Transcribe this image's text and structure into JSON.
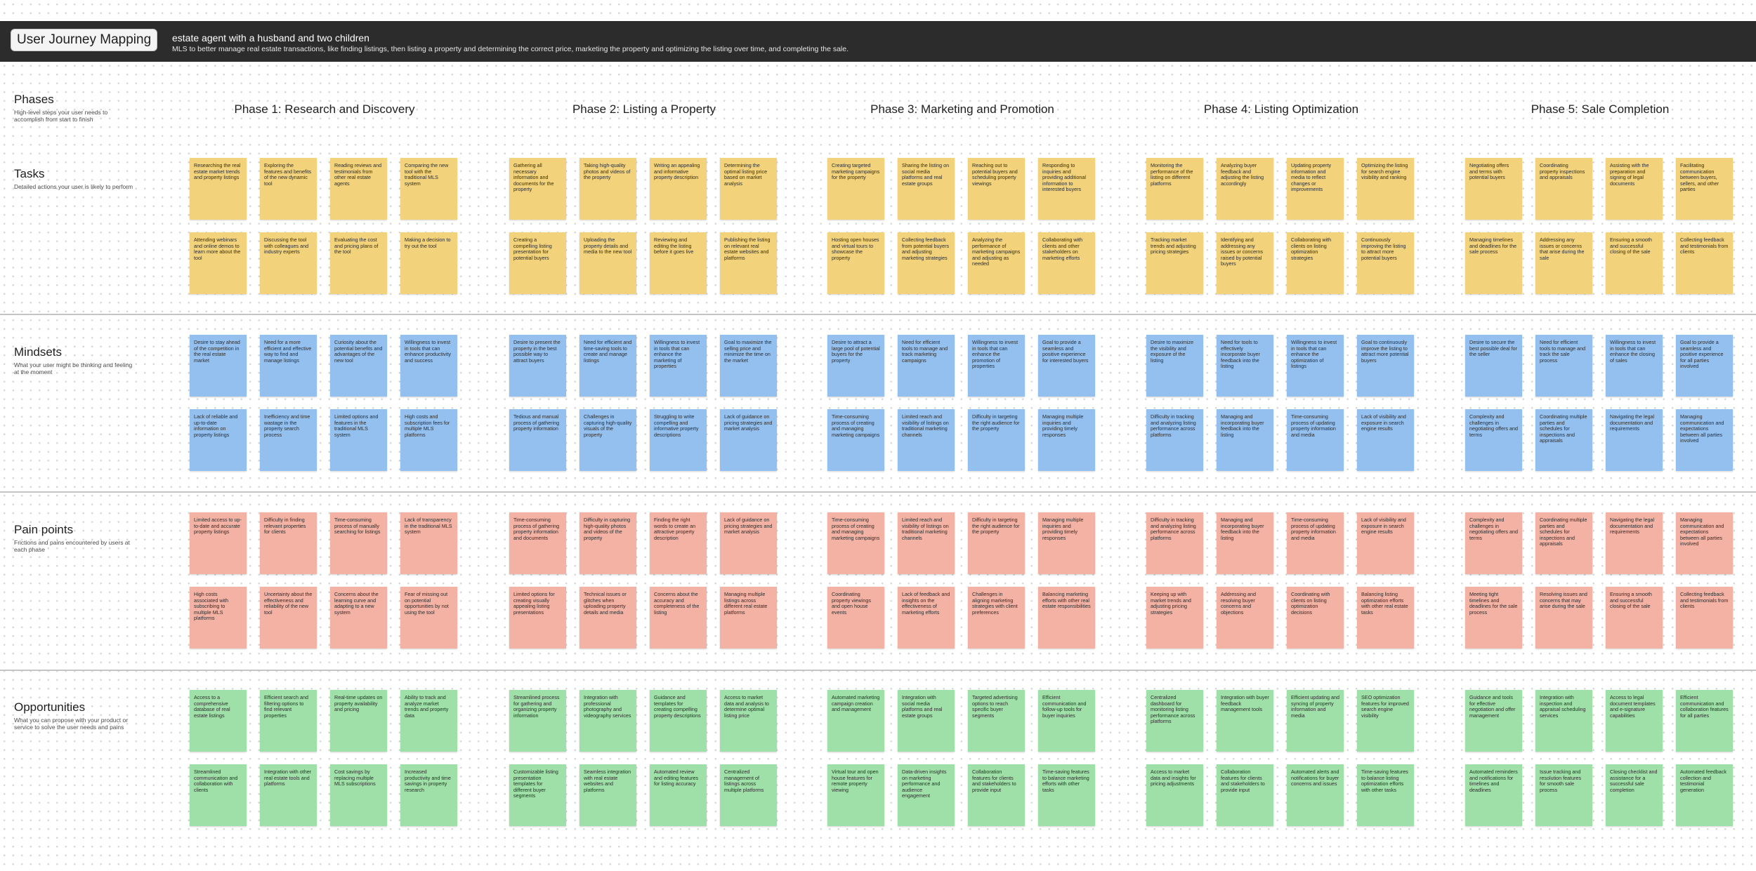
{
  "header": {
    "title_badge": "User Journey Mapping",
    "persona": "estate agent with a husband and two children",
    "description": "MLS to better manage real estate transactions, like finding listings, then listing a property and determining the correct price, marketing the property and optimizing the listing over time, and completing the sale."
  },
  "rows": {
    "phases": {
      "title": "Phases",
      "desc": "High-level steps your user needs to accomplish from start to finish"
    },
    "tasks": {
      "title": "Tasks",
      "desc": "Detailed actions your user is likely to perform"
    },
    "mindsets": {
      "title": "Mindsets",
      "desc": "What your user might be thinking and feeling at the moment"
    },
    "pains": {
      "title": "Pain points",
      "desc": "Frictions and pains encountered by users at each phase"
    },
    "opps": {
      "title": "Opportunities",
      "desc": "What you can propose with your product or service to solve the user needs and pains"
    }
  },
  "phases": [
    {
      "title": "Phase 1: Research and Discovery",
      "tasks": [
        "Researching the real estate market trends and property listings",
        "Exploring the features and benefits of the new dynamic tool",
        "Reading reviews and testimonials from other real estate agents",
        "Comparing the new tool with the traditional MLS system",
        "Attending webinars and online demos to learn more about the tool",
        "Discussing the tool with colleagues and industry experts",
        "Evaluating the cost and pricing plans of the tool",
        "Making a decision to try out the tool"
      ],
      "mindsets": [
        "Desire to stay ahead of the competition in the real estate market",
        "Need for a more efficient and effective way to find and manage listings",
        "Curiosity about the potential benefits and advantages of the new tool",
        "Willingness to invest in tools that can enhance productivity and success",
        "Lack of reliable and up-to-date information on property listings",
        "Inefficiency and time wastage in the property search process",
        "Limited options and features in the traditional MLS system",
        "High costs and subscription fees for multiple MLS platforms"
      ],
      "pains": [
        "Limited access to up-to-date and accurate property listings",
        "Difficulty in finding relevant properties for clients",
        "Time-consuming process of manually searching for listings",
        "Lack of transparency in the traditional MLS system",
        "High costs associated with subscribing to multiple MLS platforms",
        "Uncertainty about the effectiveness and reliability of the new tool",
        "Concerns about the learning curve and adapting to a new system",
        "Fear of missing out on potential opportunities by not using the tool"
      ],
      "opps": [
        "Access to a comprehensive database of real estate listings",
        "Efficient search and filtering options to find relevant properties",
        "Real-time updates on property availability and pricing",
        "Ability to track and analyze market trends and property data",
        "Streamlined communication and collaboration with clients",
        "Integration with other real estate tools and platforms",
        "Cost savings by replacing multiple MLS subscriptions",
        "Increased productivity and time savings in property research"
      ]
    },
    {
      "title": "Phase 2: Listing a Property",
      "tasks": [
        "Gathering all necessary information and documents for the property",
        "Taking high-quality photos and videos of the property",
        "Writing an appealing and informative property description",
        "Determining the optimal listing price based on market analysis",
        "Creating a compelling listing presentation for potential buyers",
        "Uploading the property details and media to the new tool",
        "Reviewing and editing the listing before it goes live",
        "Publishing the listing on relevant real estate websites and platforms"
      ],
      "mindsets": [
        "Desire to present the property in the best possible way to attract buyers",
        "Need for efficient and time-saving tools to create and manage listings",
        "Willingness to invest in tools that can enhance the marketing of properties",
        "Goal to maximize the selling price and minimize the time on the market",
        "Tedious and manual process of gathering property information",
        "Challenges in capturing high-quality visuals of the property",
        "Struggling to write compelling and informative property descriptions",
        "Lack of guidance on pricing strategies and market analysis"
      ],
      "pains": [
        "Time-consuming process of gathering property information and documents",
        "Difficulty in capturing high-quality photos and videos of the property",
        "Finding the right words to create an attractive property description",
        "Lack of guidance on pricing strategies and market analysis",
        "Limited options for creating visually appealing listing presentations",
        "Technical issues or glitches when uploading property details and media",
        "Concerns about the accuracy and completeness of the listing",
        "Managing multiple listings across different real estate platforms"
      ],
      "opps": [
        "Streamlined process for gathering and organizing property information",
        "Integration with professional photography and videography services",
        "Guidance and templates for creating compelling property descriptions",
        "Access to market data and analysis to determine optimal listing price",
        "Customizable listing presentation templates for different buyer segments",
        "Seamless integration with real estate websites and platforms",
        "Automated review and editing features for listing accuracy",
        "Centralized management of listings across multiple platforms"
      ]
    },
    {
      "title": "Phase 3: Marketing and Promotion",
      "tasks": [
        "Creating targeted marketing campaigns for the property",
        "Sharing the listing on social media platforms and real estate groups",
        "Reaching out to potential buyers and scheduling property viewings",
        "Responding to inquiries and providing additional information to interested buyers",
        "Hosting open houses and virtual tours to showcase the property",
        "Collecting feedback from potential buyers and adjusting marketing strategies",
        "Analyzing the performance of marketing campaigns and adjusting as needed",
        "Collaborating with clients and other stakeholders on marketing efforts"
      ],
      "mindsets": [
        "Desire to attract a large pool of potential buyers for the property",
        "Need for efficient tools to manage and track marketing campaigns",
        "Willingness to invest in tools that can enhance the promotion of properties",
        "Goal to provide a seamless and positive experience for interested buyers",
        "Time-consuming process of creating and managing marketing campaigns",
        "Limited reach and visibility of listings on traditional marketing channels",
        "Difficulty in targeting the right audience for the property",
        "Managing multiple inquiries and providing timely responses"
      ],
      "pains": [
        "Time-consuming process of creating and managing marketing campaigns",
        "Limited reach and visibility of listings on traditional marketing channels",
        "Difficulty in targeting the right audience for the property",
        "Managing multiple inquiries and providing timely responses",
        "Coordinating property viewings and open house events",
        "Lack of feedback and insights on the effectiveness of marketing efforts",
        "Challenges in aligning marketing strategies with client preferences",
        "Balancing marketing efforts with other real estate responsibilities"
      ],
      "opps": [
        "Automated marketing campaign creation and management",
        "Integration with social media platforms and real estate groups",
        "Targeted advertising options to reach specific buyer segments",
        "Efficient communication and follow-up tools for buyer inquiries",
        "Virtual tour and open house features for remote property viewing",
        "Data-driven insights on marketing performance and audience engagement",
        "Collaboration features for clients and stakeholders to provide input",
        "Time-saving features to balance marketing efforts with other tasks"
      ]
    },
    {
      "title": "Phase 4: Listing Optimization",
      "tasks": [
        "Monitoring the performance of the listing on different platforms",
        "Analyzing buyer feedback and adjusting the listing accordingly",
        "Updating property information and media to reflect changes or improvements",
        "Optimizing the listing for search engine visibility and ranking",
        "Tracking market trends and adjusting pricing strategies",
        "Identifying and addressing any issues or concerns raised by potential buyers",
        "Collaborating with clients on listing optimization strategies",
        "Continuously improving the listing to attract more potential buyers"
      ],
      "mindsets": [
        "Desire to maximize the visibility and exposure of the listing",
        "Need for tools to effectively incorporate buyer feedback into the listing",
        "Willingness to invest in tools that can enhance the optimization of listings",
        "Goal to continuously improve the listing to attract more potential buyers",
        "Difficulty in tracking and analyzing listing performance across platforms",
        "Managing and incorporating buyer feedback into the listing",
        "Time-consuming process of updating property information and media",
        "Lack of visibility and exposure in search engine results"
      ],
      "pains": [
        "Difficulty in tracking and analyzing listing performance across platforms",
        "Managing and incorporating buyer feedback into the listing",
        "Time-consuming process of updating property information and media",
        "Lack of visibility and exposure in search engine results",
        "Keeping up with market trends and adjusting pricing strategies",
        "Addressing and resolving buyer concerns and objections",
        "Coordinating with clients on listing optimization decisions",
        "Balancing listing optimization efforts with other real estate tasks"
      ],
      "opps": [
        "Centralized dashboard for monitoring listing performance across platforms",
        "Integration with buyer feedback management tools",
        "Efficient updating and syncing of property information and media",
        "SEO optimization features for improved search engine visibility",
        "Access to market data and insights for pricing adjustments",
        "Collaboration features for clients and stakeholders to provide input",
        "Automated alerts and notifications for buyer concerns and issues",
        "Time-saving features to balance listing optimization efforts with other tasks"
      ]
    },
    {
      "title": "Phase 5: Sale Completion",
      "tasks": [
        "Negotiating offers and terms with potential buyers",
        "Coordinating property inspections and appraisals",
        "Assisting with the preparation and signing of legal documents",
        "Facilitating communication between buyers, sellers, and other parties",
        "Managing timelines and deadlines for the sale process",
        "Addressing any issues or concerns that arise during the sale",
        "Ensuring a smooth and successful closing of the sale",
        "Collecting feedback and testimonials from clients"
      ],
      "mindsets": [
        "Desire to secure the best possible deal for the seller",
        "Need for efficient tools to manage and track the sale process",
        "Willingness to invest in tools that can enhance the closing of sales",
        "Goal to provide a seamless and positive experience for all parties involved",
        "Complexity and challenges in negotiating offers and terms",
        "Coordinating multiple parties and schedules for inspections and appraisals",
        "Navigating the legal documentation and requirements",
        "Managing communication and expectations between all parties involved"
      ],
      "pains": [
        "Complexity and challenges in negotiating offers and terms",
        "Coordinating multiple parties and schedules for inspections and appraisals",
        "Navigating the legal documentation and requirements",
        "Managing communication and expectations between all parties involved",
        "Meeting tight timelines and deadlines for the sale process",
        "Resolving issues and concerns that may arise during the sale",
        "Ensuring a smooth and successful closing of the sale",
        "Collecting feedback and testimonials from clients"
      ],
      "opps": [
        "Guidance and tools for effective negotiation and offer management",
        "Integration with inspection and appraisal scheduling services",
        "Access to legal document templates and e-signature capabilities",
        "Efficient communication and collaboration features for all parties",
        "Automated reminders and notifications for timelines and deadlines",
        "Issue tracking and resolution features for smooth sale process",
        "Closing checklist and assistance for a successful sale completion",
        "Automated feedback collection and testimonial generation"
      ]
    }
  ]
}
